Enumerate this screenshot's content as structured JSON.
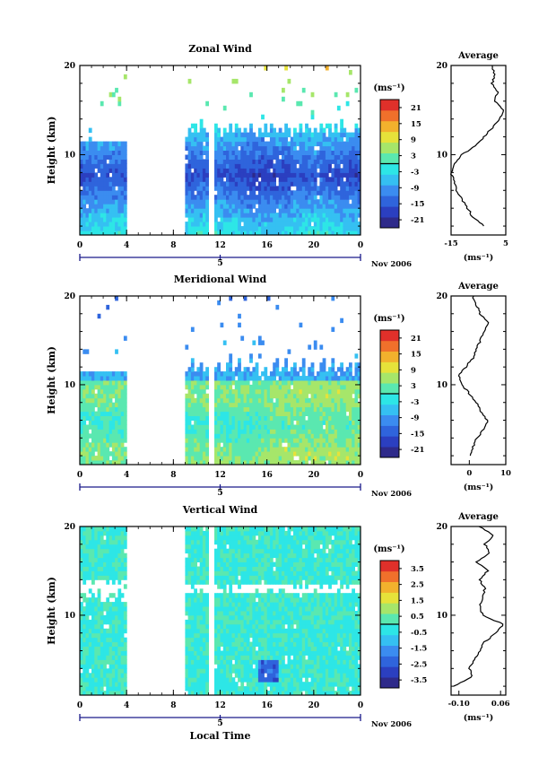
{
  "chart_data": [
    {
      "type": "heatmap",
      "title": "Zonal Wind",
      "ylabel": "Height (km)",
      "xlabel": "",
      "x_ticks": [
        "0",
        "4",
        "8",
        "12",
        "16",
        "20",
        "0"
      ],
      "x_sub_label": "5",
      "date_label": "Nov 2006",
      "y_ticks": [
        "10",
        "20"
      ],
      "ylim": [
        1,
        20
      ],
      "xlim": [
        0,
        24
      ],
      "colorbar": {
        "unit_label": "(ms⁻¹)",
        "ticks": [
          "21",
          "15",
          "9",
          "3",
          "-3",
          "-9",
          "-15",
          "-21"
        ],
        "range": [
          -24,
          24
        ]
      },
      "data_gap_hours": [
        [
          3.8,
          9.0
        ]
      ],
      "average": {
        "title": "Average",
        "x_ticks": [
          "-15",
          "5"
        ],
        "xlim": [
          -15,
          5
        ],
        "xlabel": "(ms⁻¹)",
        "y_ticks": [
          "10",
          "20"
        ],
        "height_km": [
          2,
          3,
          4,
          5,
          6,
          7,
          8,
          9,
          10,
          11,
          12,
          13,
          14,
          15,
          16,
          17,
          18,
          19,
          20
        ],
        "values": [
          -3,
          -7,
          -9,
          -11,
          -13,
          -14,
          -15,
          -14,
          -11,
          -6,
          -3,
          0,
          3,
          4,
          1,
          2,
          0,
          1,
          0
        ]
      }
    },
    {
      "type": "heatmap",
      "title": "Meridional Wind",
      "ylabel": "Height (km)",
      "xlabel": "",
      "x_ticks": [
        "0",
        "4",
        "8",
        "12",
        "16",
        "20",
        "0"
      ],
      "x_sub_label": "5",
      "date_label": "Nov 2006",
      "y_ticks": [
        "10",
        "20"
      ],
      "ylim": [
        1,
        20
      ],
      "xlim": [
        0,
        24
      ],
      "colorbar": {
        "unit_label": "(ms⁻¹)",
        "ticks": [
          "21",
          "15",
          "9",
          "3",
          "-3",
          "-9",
          "-15",
          "-21"
        ],
        "range": [
          -24,
          24
        ]
      },
      "data_gap_hours": [
        [
          3.8,
          9.0
        ]
      ],
      "average": {
        "title": "Average",
        "x_ticks": [
          "0",
          "10"
        ],
        "xlim": [
          -5,
          10
        ],
        "xlabel": "(ms⁻¹)",
        "y_ticks": [
          "10",
          "20"
        ],
        "height_km": [
          2,
          3,
          4,
          5,
          6,
          7,
          8,
          9,
          10,
          11,
          12,
          13,
          14,
          15,
          16,
          17,
          18,
          19,
          20
        ],
        "values": [
          0,
          1,
          2,
          4,
          5,
          3,
          2,
          0,
          -2,
          -3,
          -1,
          1,
          2,
          3,
          4,
          5,
          3,
          2,
          1
        ]
      }
    },
    {
      "type": "heatmap",
      "title": "Vertical Wind",
      "ylabel": "Height (km)",
      "xlabel": "Local Time",
      "x_ticks": [
        "0",
        "4",
        "8",
        "12",
        "16",
        "20",
        "0"
      ],
      "x_sub_label": "5",
      "date_label": "Nov 2006",
      "y_ticks": [
        "10",
        "20"
      ],
      "ylim": [
        1,
        20
      ],
      "xlim": [
        0,
        24
      ],
      "colorbar": {
        "unit_label": "(ms⁻¹)",
        "ticks": [
          "3.5",
          "2.5",
          "1.5",
          "0.5",
          "-0.5",
          "-1.5",
          "-2.5",
          "-3.5"
        ],
        "range": [
          -4,
          4
        ]
      },
      "data_gap_hours": [
        [
          3.8,
          9.0
        ]
      ],
      "average": {
        "title": "Average",
        "x_ticks": [
          "-0.10",
          "0.06"
        ],
        "xlim": [
          -0.13,
          0.08
        ],
        "xlabel": "(ms⁻¹)",
        "y_ticks": [
          "10",
          "20"
        ],
        "height_km": [
          2,
          3,
          4,
          5,
          6,
          7,
          8,
          9,
          10,
          11,
          12,
          13,
          14,
          15,
          16,
          17,
          18,
          19,
          20
        ],
        "values": [
          -0.12,
          -0.05,
          -0.06,
          -0.04,
          -0.02,
          0.0,
          0.04,
          0.07,
          -0.01,
          -0.02,
          -0.01,
          0.0,
          -0.02,
          0.01,
          -0.03,
          0.02,
          0.0,
          0.03,
          -0.02
        ]
      }
    }
  ]
}
